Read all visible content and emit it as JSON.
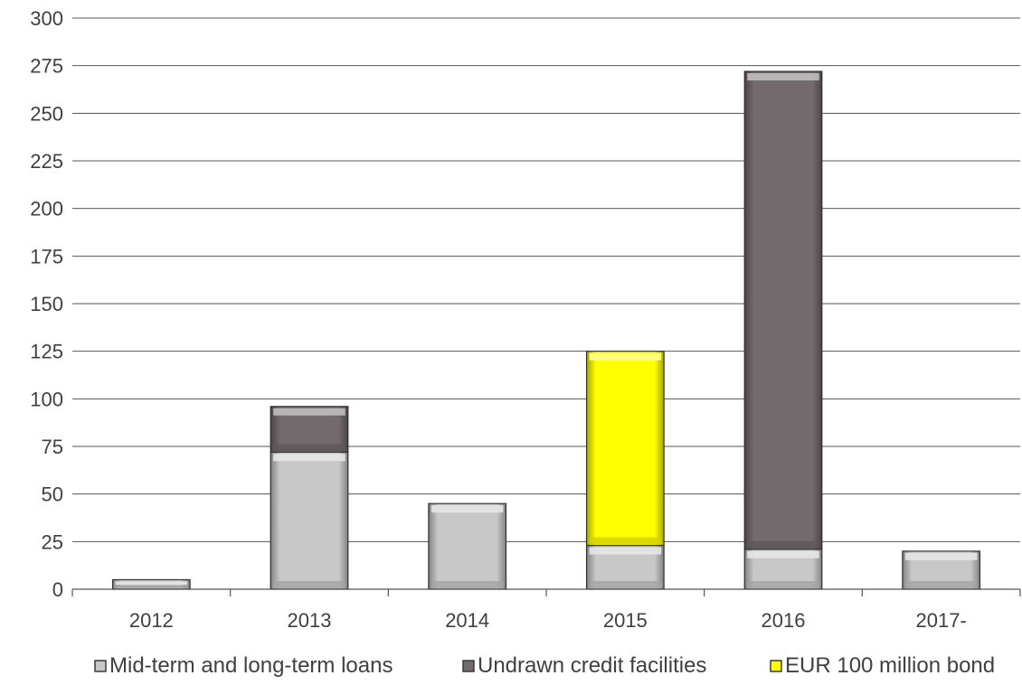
{
  "chart_data": {
    "type": "bar",
    "stacked": true,
    "title": "",
    "xlabel": "",
    "ylabel": "",
    "categories": [
      "2012",
      "2013",
      "2014",
      "2015",
      "2016",
      "2017-"
    ],
    "series": [
      {
        "name": "Mid-term and long-term loans",
        "values": [
          5,
          72,
          45,
          23,
          21,
          20
        ],
        "color": "#c8c8c8"
      },
      {
        "name": "Undrawn credit facilities",
        "values": [
          0,
          24,
          0,
          0,
          251,
          0
        ],
        "color": "#736a6d"
      },
      {
        "name": "EUR 100 million bond",
        "values": [
          0,
          0,
          0,
          102,
          0,
          0
        ],
        "color": "#ffff00"
      }
    ],
    "ylim": [
      0,
      300
    ],
    "yticks": [
      "0",
      "25",
      "50",
      "75",
      "100",
      "125",
      "150",
      "175",
      "200",
      "225",
      "250",
      "275",
      "300"
    ],
    "grid": true,
    "legend_position": "bottom"
  }
}
